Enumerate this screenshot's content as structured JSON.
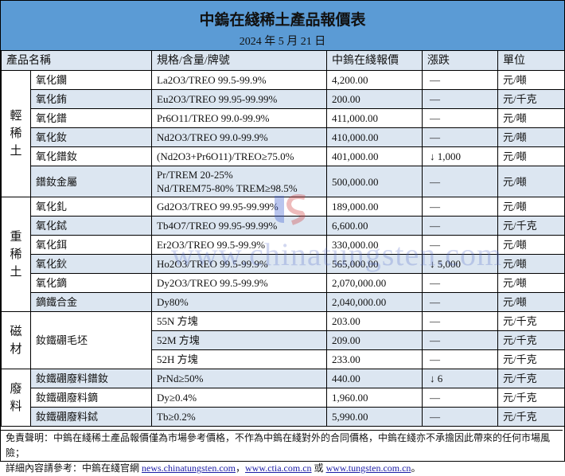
{
  "header": {
    "title": "中鎢在綫稀土產品報價表",
    "date": "2024 年 5 月 21 日"
  },
  "columns": [
    "產品名稱",
    "規格/含量/牌號",
    "中鎢在綫報價",
    "漲跌",
    "單位"
  ],
  "groups": [
    {
      "category": "輕稀土",
      "rows": [
        {
          "name": "氧化鑭",
          "spec": [
            "La2O3/TREO 99.5-99.9%"
          ],
          "price": "4,200.00",
          "change": "—",
          "unit": "元/噸"
        },
        {
          "name": "氧化銪",
          "spec": [
            "Eu2O3/TREO 99.95-99.99%"
          ],
          "price": "200.00",
          "change": "—",
          "unit": "元/千克"
        },
        {
          "name": "氧化鐠",
          "spec": [
            "Pr6O11/TREO 99.0-99.9%"
          ],
          "price": "411,000.00",
          "change": "—",
          "unit": "元/噸"
        },
        {
          "name": "氧化釹",
          "spec": [
            "Nd2O3/TREO 99.0-99.9%"
          ],
          "price": "410,000.00",
          "change": "—",
          "unit": "元/噸"
        },
        {
          "name": "氧化鐠釹",
          "spec": [
            "(Nd2O3+Pr6O11)/TREO≥75.0%"
          ],
          "price": "401,000.00",
          "change": "↓ 1,000",
          "unit": "元/噸"
        },
        {
          "name": "鐠釹金屬",
          "spec": [
            "Pr/TREM 20-25%",
            "Nd/TREM75-80% TREM≥98.5%"
          ],
          "price": "500,000.00",
          "change": "—",
          "unit": "元/噸"
        }
      ]
    },
    {
      "category": "重稀土",
      "rows": [
        {
          "name": "氧化釓",
          "spec": [
            "Gd2O3/TREO 99.95-99.99%"
          ],
          "price": "189,000.00",
          "change": "—",
          "unit": "元/噸"
        },
        {
          "name": "氧化鋱",
          "spec": [
            "Tb4O7/TREO 99.95-99.99%"
          ],
          "price": "6,600.00",
          "change": "—",
          "unit": "元/千克"
        },
        {
          "name": "氧化鉺",
          "spec": [
            "Er2O3/TREO 99.5-99.9%"
          ],
          "price": "330,000.00",
          "change": "—",
          "unit": "元/噸"
        },
        {
          "name": "氧化鈥",
          "spec": [
            "Ho2O3/TREO 99.5-99.9%"
          ],
          "price": "565,000.00",
          "change": "↓ 5,000",
          "unit": "元/噸"
        },
        {
          "name": "氧化鏑",
          "spec": [
            "Dy2O3/TREO 99.5-99.9%"
          ],
          "price": "2,070,000.00",
          "change": "—",
          "unit": "元/噸"
        },
        {
          "name": "鏑鐵合金",
          "spec": [
            "Dy80%"
          ],
          "price": "2,040,000.00",
          "change": "—",
          "unit": "元/噸"
        }
      ]
    },
    {
      "category": "磁材",
      "rows": [
        {
          "name": "釹鐵硼毛坯",
          "spec": [
            "55N 方塊"
          ],
          "price": "203.00",
          "change": "—",
          "unit": "元/千克"
        },
        {
          "name": "",
          "spec": [
            "52M 方塊"
          ],
          "price": "209.00",
          "change": "—",
          "unit": "元/千克"
        },
        {
          "name": "",
          "spec": [
            "52H 方塊"
          ],
          "price": "233.00",
          "change": "—",
          "unit": "元/千克"
        }
      ]
    },
    {
      "category": "廢料",
      "rows": [
        {
          "name": "釹鐵硼廢料鐠釹",
          "spec": [
            "PrNd≥50%"
          ],
          "price": "440.00",
          "change": "↓ 6",
          "unit": "元/千克"
        },
        {
          "name": "釹鐵硼廢料鏑",
          "spec": [
            "Dy≥0.4%"
          ],
          "price": "1,960.00",
          "change": "—",
          "unit": "元/千克"
        },
        {
          "name": "釹鐵硼廢料鋱",
          "spec": [
            "Tb≥0.2%"
          ],
          "price": "5,990.00",
          "change": "—",
          "unit": "元/千克"
        }
      ]
    }
  ],
  "footer": {
    "disclaimer": "免責聲明：中鎢在綫稀土產品報價僅為市場參考價格，不作為中鎢在綫對外的合同價格，中鎢在綫亦不承擔因此帶來的任何市場風險；",
    "ref_prefix": "詳細內容請參考：中鎢在綫官網 ",
    "link1": "news.chinatungsten.com",
    "sep1": "，",
    "link2": "www.ctia.com.cn",
    "sep2": " 或 ",
    "link3": "www.tungsten.com.cn",
    "end": "。"
  },
  "watermark": "www.chinatungsten.com",
  "colors": {
    "title_band": "#5b9bd5",
    "alt_row": "#dce6f1",
    "link": "#1a1aa6"
  }
}
